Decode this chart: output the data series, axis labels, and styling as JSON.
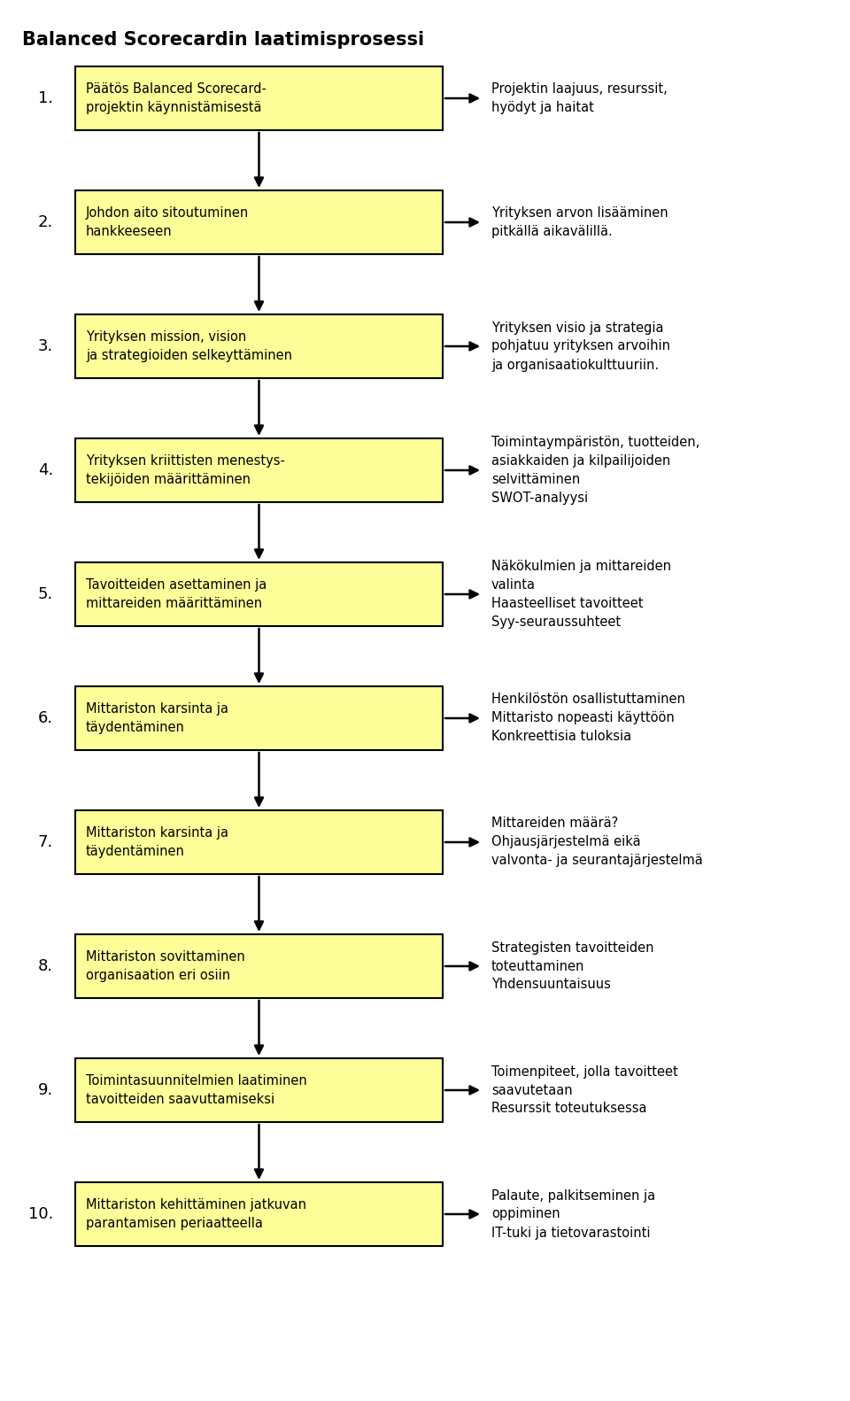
{
  "title": "Balanced Scorecardin laatimisprosessi",
  "background_color": "#ffffff",
  "box_fill": "#ffff99",
  "box_edge": "#000000",
  "steps": [
    {
      "number": "1.",
      "box_text": "Päätös Balanced Scorecard-\nprojektin käynnistämisestä",
      "side_text": "Projektin laajuus, resurssit,\nhyödyt ja haitat"
    },
    {
      "number": "2.",
      "box_text": "Johdon aito sitoutuminen\nhankkeeseen",
      "side_text": "Yrityksen arvon lisääminen\npitkällä aikavälillä."
    },
    {
      "number": "3.",
      "box_text": "Yrityksen mission, vision\nja strategioiden selkeyttäminen",
      "side_text": "Yrityksen visio ja strategia\npohjatuu yrityksen arvoihin\nja organisaatiokulttuuriin."
    },
    {
      "number": "4.",
      "box_text": "Yrityksen kriittisten menestys-\ntekijöiden määrittäminen",
      "side_text": "Toimintaympäristön, tuotteiden,\nasiakkaiden ja kilpailijoiden\nselvittäminen\nSWOT-analyysi"
    },
    {
      "number": "5.",
      "box_text": "Tavoitteiden asettaminen ja\nmittareiden määrittäminen",
      "side_text": "Näkökulmien ja mittareiden\nvalinta\nHaasteelliset tavoitteet\nSyy-seuraussuhteet"
    },
    {
      "number": "6.",
      "box_text": "Mittariston karsinta ja\ntäydentäminen",
      "side_text": "Henkilöstön osallistuttaminen\nMittaristo nopeasti käyttöön\nKonkreettisia tuloksia"
    },
    {
      "number": "7.",
      "box_text": "Mittariston karsinta ja\ntäydentäminen",
      "side_text": "Mittareiden määrä?\nOhjausjärjestelmä eikä\nvalvonta- ja seurantajärjestelmä"
    },
    {
      "number": "8.",
      "box_text": "Mittariston sovittaminen\norganisaation eri osiin",
      "side_text": "Strategisten tavoitteiden\ntoteuttaminen\nYhdensuuntaisuus"
    },
    {
      "number": "9.",
      "box_text": "Toimintasuunnitelmien laatiminen\ntavoitteiden saavuttamiseksi",
      "side_text": "Toimenpiteet, jolla tavoitteet\nsaavutetaan\nResurssit toteutuksessa"
    },
    {
      "number": "10.",
      "box_text": "Mittariston kehittäminen jatkuvan\nparantamisen periaatteella",
      "side_text": "Palaute, palkitseminen ja\noppiminen\nIT-tuki ja tietovarastointi"
    }
  ]
}
